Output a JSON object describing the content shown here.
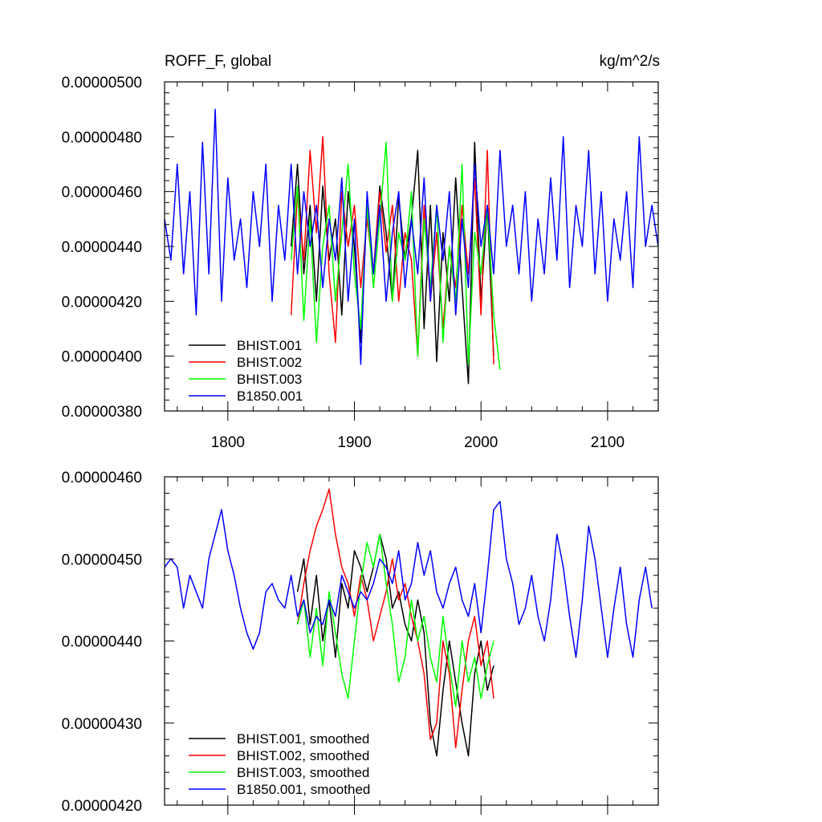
{
  "figure": {
    "title_left": "ROFF_F, global",
    "title_right": "kg/m^2/s"
  },
  "chart_data": [
    {
      "type": "line",
      "name": "raw",
      "xlim": [
        1750,
        2140
      ],
      "ylim": [
        3.8e-06,
        5e-06
      ],
      "x_ticks": [
        1800,
        1900,
        2000,
        2100
      ],
      "x_tick_labels": [
        "1800",
        "1900",
        "2000",
        "2100"
      ],
      "y_ticks": [
        3.8e-06,
        4e-06,
        4.2e-06,
        4.4e-06,
        4.6e-06,
        4.8e-06,
        5e-06
      ],
      "y_tick_labels": [
        "0.00000380",
        "0.00000400",
        "0.00000420",
        "0.00000440",
        "0.00000460",
        "0.00000480",
        "0.00000500"
      ],
      "legend_position": "bottom-left",
      "series": [
        {
          "name": "BHIST.001",
          "color": "#000000",
          "x": [
            1850,
            1855,
            1860,
            1865,
            1870,
            1875,
            1880,
            1885,
            1890,
            1895,
            1900,
            1905,
            1910,
            1915,
            1920,
            1925,
            1930,
            1935,
            1940,
            1945,
            1950,
            1955,
            1960,
            1965,
            1970,
            1975,
            1980,
            1985,
            1990,
            1995,
            2000,
            2005,
            2010
          ],
          "y": [
            4.4e-06,
            4.7e-06,
            4.3e-06,
            4.55e-06,
            4.2e-06,
            4.62e-06,
            4.35e-06,
            4.5e-06,
            4.15e-06,
            4.6e-06,
            4.4e-06,
            4.05e-06,
            4.55e-06,
            4.3e-06,
            4.62e-06,
            4.45e-06,
            4.2e-06,
            4.58e-06,
            4.35e-06,
            4.5e-06,
            4.75e-06,
            4.1e-06,
            4.55e-06,
            3.98e-06,
            4.45e-06,
            4.2e-06,
            4.65e-06,
            4.25e-06,
            3.9e-06,
            4.78e-06,
            4.2e-06,
            4.55e-06,
            4e-06
          ]
        },
        {
          "name": "BHIST.002",
          "color": "#ff0000",
          "x": [
            1850,
            1855,
            1860,
            1865,
            1870,
            1875,
            1880,
            1885,
            1890,
            1895,
            1900,
            1905,
            1910,
            1915,
            1920,
            1925,
            1930,
            1935,
            1940,
            1945,
            1950,
            1955,
            1960,
            1965,
            1970,
            1975,
            1980,
            1985,
            1990,
            1995,
            2000,
            2005,
            2010
          ],
          "y": [
            4.15e-06,
            4.6e-06,
            4.35e-06,
            4.75e-06,
            4.45e-06,
            4.8e-06,
            4.3e-06,
            4.05e-06,
            4.6e-06,
            4.4e-06,
            4.55e-06,
            4.25e-06,
            4.5e-06,
            4.3e-06,
            4.6e-06,
            4.38e-06,
            4.55e-06,
            4.2e-06,
            4.45e-06,
            4.35e-06,
            4e-06,
            4.55e-06,
            4.2e-06,
            4.45e-06,
            4.1e-06,
            4.4e-06,
            4.25e-06,
            4.55e-06,
            4.3e-06,
            4.65e-06,
            4.15e-06,
            4.75e-06,
            3.97e-06
          ]
        },
        {
          "name": "BHIST.003",
          "color": "#00ff00",
          "x": [
            1850,
            1855,
            1860,
            1865,
            1870,
            1875,
            1880,
            1885,
            1890,
            1895,
            1900,
            1905,
            1910,
            1915,
            1920,
            1925,
            1930,
            1935,
            1940,
            1945,
            1950,
            1955,
            1960,
            1965,
            1970,
            1975,
            1980,
            1985,
            1990,
            1995,
            2000,
            2005,
            2010,
            2015
          ],
          "y": [
            4.35e-06,
            4.62e-06,
            4.13e-06,
            4.5e-06,
            4.05e-06,
            4.4e-06,
            4.55e-06,
            4.2e-06,
            4.45e-06,
            4.7e-06,
            4.3e-06,
            4.1e-06,
            4.55e-06,
            4.25e-06,
            4.5e-06,
            4.78e-06,
            4.2e-06,
            4.45e-06,
            4.35e-06,
            4.6e-06,
            4e-06,
            4.5e-06,
            4.25e-06,
            4.55e-06,
            4.05e-06,
            4.4e-06,
            4.2e-06,
            4.7e-06,
            3.97e-06,
            4.45e-06,
            4.3e-06,
            4.55e-06,
            4.15e-06,
            3.95e-06
          ]
        },
        {
          "name": "B1850.001",
          "color": "#0000ff",
          "x": [
            1750,
            1755,
            1760,
            1765,
            1770,
            1775,
            1780,
            1785,
            1790,
            1795,
            1800,
            1805,
            1810,
            1815,
            1820,
            1825,
            1830,
            1835,
            1840,
            1845,
            1850,
            1855,
            1860,
            1865,
            1870,
            1875,
            1880,
            1885,
            1890,
            1895,
            1900,
            1905,
            1910,
            1915,
            1920,
            1925,
            1930,
            1935,
            1940,
            1945,
            1950,
            1955,
            1960,
            1965,
            1970,
            1975,
            1980,
            1985,
            1990,
            1995,
            2000,
            2005,
            2010,
            2015,
            2020,
            2025,
            2030,
            2035,
            2040,
            2045,
            2050,
            2055,
            2060,
            2065,
            2070,
            2075,
            2080,
            2085,
            2090,
            2095,
            2100,
            2105,
            2110,
            2115,
            2120,
            2125,
            2130,
            2135,
            2140
          ],
          "y": [
            4.5e-06,
            4.35e-06,
            4.7e-06,
            4.3e-06,
            4.6e-06,
            4.15e-06,
            4.78e-06,
            4.3e-06,
            4.9e-06,
            4.2e-06,
            4.65e-06,
            4.35e-06,
            4.5e-06,
            4.25e-06,
            4.6e-06,
            4.4e-06,
            4.7e-06,
            4.2e-06,
            4.55e-06,
            4.35e-06,
            4.7e-06,
            4.3e-06,
            4.6e-06,
            4.4e-06,
            4.55e-06,
            4.25e-06,
            4.5e-06,
            4.35e-06,
            4.65e-06,
            4.2e-06,
            4.5e-06,
            3.97e-06,
            4.6e-06,
            4.3e-06,
            4.55e-06,
            4.2e-06,
            4.45e-06,
            4.6e-06,
            4.25e-06,
            4.5e-06,
            4.3e-06,
            4.65e-06,
            4.2e-06,
            4.55e-06,
            4.35e-06,
            4.6e-06,
            4.15e-06,
            4.5e-06,
            4.25e-06,
            4.7e-06,
            4.4e-06,
            4.55e-06,
            4.3e-06,
            4.75e-06,
            4.4e-06,
            4.55e-06,
            4.3e-06,
            4.6e-06,
            4.2e-06,
            4.5e-06,
            4.3e-06,
            4.65e-06,
            4.35e-06,
            4.8e-06,
            4.25e-06,
            4.55e-06,
            4.4e-06,
            4.75e-06,
            4.3e-06,
            4.6e-06,
            4.2e-06,
            4.5e-06,
            4.35e-06,
            4.6e-06,
            4.25e-06,
            4.8e-06,
            4.4e-06,
            4.55e-06,
            4.4e-06
          ]
        }
      ]
    },
    {
      "type": "line",
      "name": "smoothed",
      "xlim": [
        1750,
        2140
      ],
      "ylim": [
        4.2e-06,
        4.6e-06
      ],
      "x_ticks": [
        1800,
        1900,
        2000,
        2100
      ],
      "x_tick_labels": [
        "",
        "",
        "",
        ""
      ],
      "y_ticks": [
        4.2e-06,
        4.3e-06,
        4.4e-06,
        4.5e-06,
        4.6e-06
      ],
      "y_tick_labels": [
        "0.00000420",
        "0.00000430",
        "0.00000440",
        "0.00000450",
        "0.00000460"
      ],
      "legend_position": "bottom-left",
      "series": [
        {
          "name": "BHIST.001, smoothed",
          "color": "#000000",
          "x": [
            1855,
            1860,
            1865,
            1870,
            1875,
            1880,
            1885,
            1890,
            1895,
            1900,
            1905,
            1910,
            1915,
            1920,
            1925,
            1930,
            1935,
            1940,
            1945,
            1950,
            1955,
            1960,
            1965,
            1970,
            1975,
            1980,
            1985,
            1990,
            1995,
            2000,
            2005,
            2010
          ],
          "y": [
            4.46e-06,
            4.5e-06,
            4.42e-06,
            4.48e-06,
            4.4e-06,
            4.45e-06,
            4.38e-06,
            4.47e-06,
            4.44e-06,
            4.51e-06,
            4.49e-06,
            4.46e-06,
            4.49e-06,
            4.53e-06,
            4.5e-06,
            4.44e-06,
            4.46e-06,
            4.42e-06,
            4.4e-06,
            4.45e-06,
            4.41e-06,
            4.3e-06,
            4.26e-06,
            4.34e-06,
            4.4e-06,
            4.35e-06,
            4.3e-06,
            4.26e-06,
            4.36e-06,
            4.4e-06,
            4.34e-06,
            4.37e-06
          ]
        },
        {
          "name": "BHIST.002, smoothed",
          "color": "#ff0000",
          "x": [
            1855,
            1860,
            1865,
            1870,
            1875,
            1880,
            1885,
            1890,
            1895,
            1900,
            1905,
            1910,
            1915,
            1920,
            1925,
            1930,
            1935,
            1940,
            1945,
            1950,
            1955,
            1960,
            1965,
            1970,
            1975,
            1980,
            1985,
            1990,
            1995,
            2000,
            2005,
            2010
          ],
          "y": [
            4.42e-06,
            4.47e-06,
            4.51e-06,
            4.54e-06,
            4.56e-06,
            4.585e-06,
            4.53e-06,
            4.49e-06,
            4.47e-06,
            4.43e-06,
            4.48e-06,
            4.45e-06,
            4.4e-06,
            4.43e-06,
            4.46e-06,
            4.5e-06,
            4.45e-06,
            4.47e-06,
            4.43e-06,
            4.4e-06,
            4.36e-06,
            4.28e-06,
            4.3e-06,
            4.4e-06,
            4.36e-06,
            4.27e-06,
            4.34e-06,
            4.4e-06,
            4.43e-06,
            4.37e-06,
            4.4e-06,
            4.33e-06
          ]
        },
        {
          "name": "BHIST.003, smoothed",
          "color": "#00ff00",
          "x": [
            1855,
            1860,
            1865,
            1870,
            1875,
            1880,
            1885,
            1890,
            1895,
            1900,
            1905,
            1910,
            1915,
            1920,
            1925,
            1930,
            1935,
            1940,
            1945,
            1950,
            1955,
            1960,
            1965,
            1970,
            1975,
            1980,
            1985,
            1990,
            1995,
            2000,
            2005,
            2010
          ],
          "y": [
            4.42e-06,
            4.45e-06,
            4.38e-06,
            4.44e-06,
            4.37e-06,
            4.46e-06,
            4.41e-06,
            4.36e-06,
            4.33e-06,
            4.4e-06,
            4.47e-06,
            4.52e-06,
            4.49e-06,
            4.53e-06,
            4.47e-06,
            4.42e-06,
            4.35e-06,
            4.38e-06,
            4.45e-06,
            4.4e-06,
            4.43e-06,
            4.38e-06,
            4.35e-06,
            4.43e-06,
            4.37e-06,
            4.32e-06,
            4.4e-06,
            4.35e-06,
            4.38e-06,
            4.33e-06,
            4.37e-06,
            4.4e-06
          ]
        },
        {
          "name": "B1850.001, smoothed",
          "color": "#0000ff",
          "x": [
            1750,
            1755,
            1760,
            1765,
            1770,
            1775,
            1780,
            1785,
            1790,
            1795,
            1800,
            1805,
            1810,
            1815,
            1820,
            1825,
            1830,
            1835,
            1840,
            1845,
            1850,
            1855,
            1860,
            1865,
            1870,
            1875,
            1880,
            1885,
            1890,
            1895,
            1900,
            1905,
            1910,
            1915,
            1920,
            1925,
            1930,
            1935,
            1940,
            1945,
            1950,
            1955,
            1960,
            1965,
            1970,
            1975,
            1980,
            1985,
            1990,
            1995,
            2000,
            2005,
            2010,
            2015,
            2020,
            2025,
            2030,
            2035,
            2040,
            2045,
            2050,
            2055,
            2060,
            2065,
            2070,
            2075,
            2080,
            2085,
            2090,
            2095,
            2100,
            2105,
            2110,
            2115,
            2120,
            2125,
            2130,
            2135
          ],
          "y": [
            4.49e-06,
            4.5e-06,
            4.49e-06,
            4.44e-06,
            4.48e-06,
            4.46e-06,
            4.44e-06,
            4.5e-06,
            4.53e-06,
            4.56e-06,
            4.51e-06,
            4.48e-06,
            4.44e-06,
            4.41e-06,
            4.39e-06,
            4.41e-06,
            4.46e-06,
            4.47e-06,
            4.45e-06,
            4.44e-06,
            4.48e-06,
            4.43e-06,
            4.45e-06,
            4.41e-06,
            4.43e-06,
            4.42e-06,
            4.45e-06,
            4.43e-06,
            4.48e-06,
            4.46e-06,
            4.44e-06,
            4.46e-06,
            4.45e-06,
            4.47e-06,
            4.5e-06,
            4.49e-06,
            4.47e-06,
            4.51e-06,
            4.45e-06,
            4.47e-06,
            4.52e-06,
            4.48e-06,
            4.51e-06,
            4.46e-06,
            4.44e-06,
            4.47e-06,
            4.49e-06,
            4.45e-06,
            4.43e-06,
            4.47e-06,
            4.41e-06,
            4.48e-06,
            4.56e-06,
            4.57e-06,
            4.5e-06,
            4.47e-06,
            4.42e-06,
            4.44e-06,
            4.48e-06,
            4.43e-06,
            4.4e-06,
            4.45e-06,
            4.53e-06,
            4.49e-06,
            4.43e-06,
            4.38e-06,
            4.45e-06,
            4.54e-06,
            4.5e-06,
            4.44e-06,
            4.38e-06,
            4.44e-06,
            4.49e-06,
            4.42e-06,
            4.38e-06,
            4.45e-06,
            4.49e-06,
            4.44e-06
          ]
        }
      ]
    }
  ]
}
